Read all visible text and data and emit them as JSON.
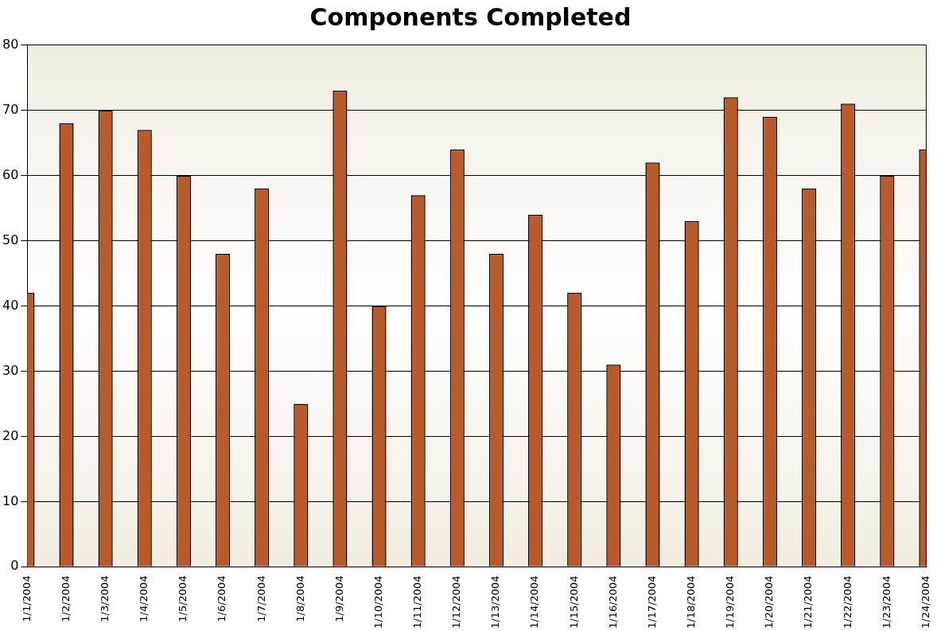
{
  "chart_data": {
    "type": "bar",
    "title": "Components Completed",
    "x": [
      "2004-01-01",
      "2004-01-02",
      "2004-01-03",
      "2004-01-04",
      "2004-01-05",
      "2004-01-06",
      "2004-01-07",
      "2004-01-08",
      "2004-01-09",
      "2004-01-10",
      "2004-01-11",
      "2004-01-12",
      "2004-01-13",
      "2004-01-14",
      "2004-01-15",
      "2004-01-16",
      "2004-01-17",
      "2004-01-18",
      "2004-01-19",
      "2004-01-20",
      "2004-01-21",
      "2004-01-22",
      "2004-01-23",
      "2004-01-24"
    ],
    "values": [
      42,
      68,
      70,
      67,
      60,
      48,
      58,
      25,
      73,
      40,
      57,
      64,
      48,
      54,
      42,
      31,
      62,
      53,
      72,
      69,
      58,
      71,
      60,
      64
    ],
    "color": "#b85a2a",
    "xlim": [
      "2004-01-01",
      "2004-01-24"
    ],
    "xticks": [
      {
        "value": "2004-01-01",
        "label": "1/1/2004"
      },
      {
        "value": "2004-01-02",
        "label": "1/2/2004"
      },
      {
        "value": "2004-01-03",
        "label": "1/3/2004"
      },
      {
        "value": "2004-01-04",
        "label": "1/4/2004"
      },
      {
        "value": "2004-01-05",
        "label": "1/5/2004"
      },
      {
        "value": "2004-01-06",
        "label": "1/6/2004"
      },
      {
        "value": "2004-01-07",
        "label": "1/7/2004"
      },
      {
        "value": "2004-01-08",
        "label": "1/8/2004"
      },
      {
        "value": "2004-01-09",
        "label": "1/9/2004"
      },
      {
        "value": "2004-01-10",
        "label": "1/10/2004"
      },
      {
        "value": "2004-01-11",
        "label": "1/11/2004"
      },
      {
        "value": "2004-01-12",
        "label": "1/12/2004"
      },
      {
        "value": "2004-01-13",
        "label": "1/13/2004"
      },
      {
        "value": "2004-01-14",
        "label": "1/14/2004"
      },
      {
        "value": "2004-01-15",
        "label": "1/15/2004"
      },
      {
        "value": "2004-01-16",
        "label": "1/16/2004"
      },
      {
        "value": "2004-01-17",
        "label": "1/17/2004"
      },
      {
        "value": "2004-01-18",
        "label": "1/18/2004"
      },
      {
        "value": "2004-01-19",
        "label": "1/19/2004"
      },
      {
        "value": "2004-01-20",
        "label": "1/20/2004"
      },
      {
        "value": "2004-01-21",
        "label": "1/21/2004"
      },
      {
        "value": "2004-01-22",
        "label": "1/22/2004"
      },
      {
        "value": "2004-01-23",
        "label": "1/23/2004"
      },
      {
        "value": "2004-01-24",
        "label": "1/24/2004"
      }
    ],
    "ylim": [
      0,
      80
    ],
    "yticks": [
      0,
      10,
      20,
      30,
      40,
      50,
      60,
      70,
      80
    ],
    "grid": "y",
    "legend": false
  }
}
